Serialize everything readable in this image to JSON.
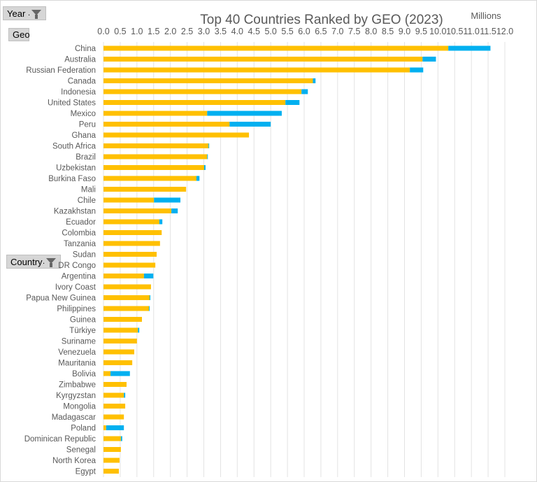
{
  "filters": {
    "year_label": "Year",
    "geo_label": "Geo",
    "country_label": "Country"
  },
  "colors": {
    "series1": "#FFC000",
    "series2": "#00B0F0",
    "grid": "#e3e3e3",
    "text": "#595959"
  },
  "chart_data": {
    "type": "bar",
    "orientation": "horizontal",
    "stacked": true,
    "title": "Top 40 Countries Ranked by GEO (2023)",
    "unit_label": "Millions",
    "xlim": [
      0,
      12
    ],
    "x_ticks": [
      "0.0",
      "0.5",
      "1.0",
      "1.5",
      "2.0",
      "2.5",
      "3.0",
      "3.5",
      "4.0",
      "4.5",
      "5.0",
      "5.5",
      "6.0",
      "6.5",
      "7.0",
      "7.5",
      "8.0",
      "8.5",
      "9.0",
      "9.5",
      "10.0",
      "10.5",
      "11.0",
      "11.5",
      "12.0"
    ],
    "x_axis_position": "top",
    "grid": true,
    "legend": "none",
    "categories": [
      "China",
      "Australia",
      "Russian Federation",
      "Canada",
      "Indonesia",
      "United States",
      "Mexico",
      "Peru",
      "Ghana",
      "South Africa",
      "Brazil",
      "Uzbekistan",
      "Burkina Faso",
      "Mali",
      "Chile",
      "Kazakhstan",
      "Ecuador",
      "Colombia",
      "Tanzania",
      "Sudan",
      "DR Congo",
      "Argentina",
      "Ivory Coast",
      "Papua New Guinea",
      "Philippines",
      "Guinea",
      "Türkiye",
      "Suriname",
      "Venezuela",
      "Mauritania",
      "Bolivia",
      "Zimbabwe",
      "Kyrgyzstan",
      "Mongolia",
      "Madagascar",
      "Poland",
      "Dominican Republic",
      "Senegal",
      "North Korea",
      "Egypt"
    ],
    "series": [
      {
        "values": [
          10.31,
          9.54,
          9.16,
          6.26,
          5.92,
          5.44,
          3.1,
          3.77,
          4.35,
          3.14,
          3.1,
          3.01,
          2.78,
          2.47,
          1.51,
          2.03,
          1.67,
          1.74,
          1.69,
          1.59,
          1.55,
          1.21,
          1.42,
          1.38,
          1.36,
          1.15,
          1.03,
          1.0,
          0.92,
          0.86,
          0.21,
          0.69,
          0.61,
          0.65,
          0.61,
          0.08,
          0.52,
          0.52,
          0.48,
          0.46
        ]
      },
      {
        "values": [
          1.26,
          0.4,
          0.4,
          0.08,
          0.19,
          0.42,
          2.23,
          1.23,
          0,
          0.02,
          0.02,
          0.04,
          0.09,
          0,
          0.79,
          0.19,
          0.09,
          0,
          0,
          0,
          0,
          0.28,
          0,
          0.02,
          0.02,
          0,
          0.04,
          0,
          0,
          0,
          0.58,
          0,
          0.04,
          0,
          0,
          0.53,
          0.04,
          0,
          0,
          0
        ]
      }
    ]
  }
}
